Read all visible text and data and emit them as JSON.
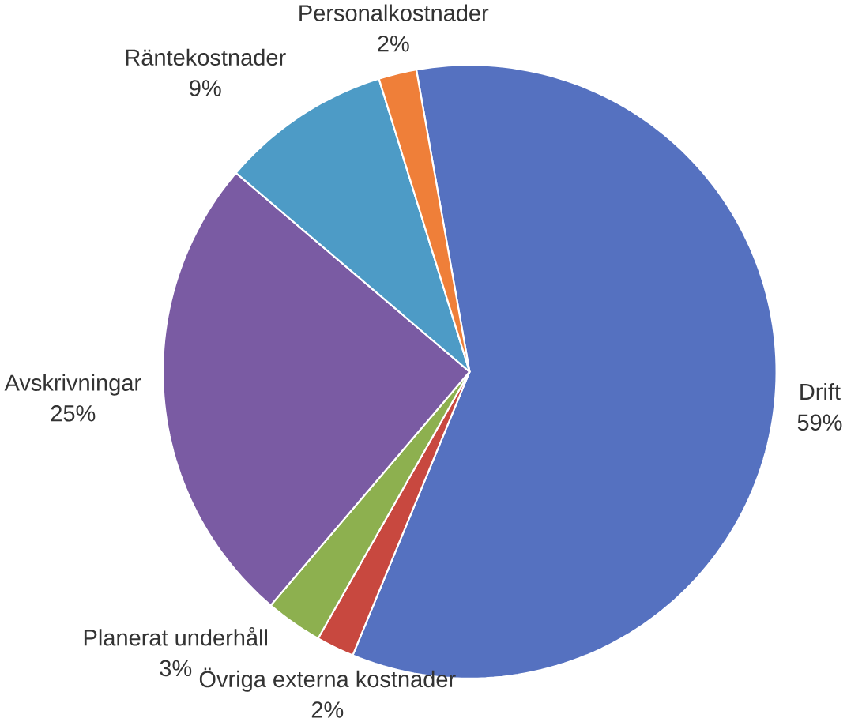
{
  "chart_data": {
    "type": "pie",
    "categories": [
      "Drift",
      "Övriga externa kostnader",
      "Planerat underhåll",
      "Avskrivningar",
      "Räntekostnader",
      "Personalkostnader"
    ],
    "values": [
      59,
      2,
      3,
      25,
      9,
      2
    ],
    "value_labels": [
      "59%",
      "2%",
      "3%",
      "25%",
      "9%",
      "2%"
    ],
    "colors": [
      "#5571c0",
      "#c8483f",
      "#8db04f",
      "#7a5ba3",
      "#4d9bc6",
      "#ef7f39"
    ]
  }
}
